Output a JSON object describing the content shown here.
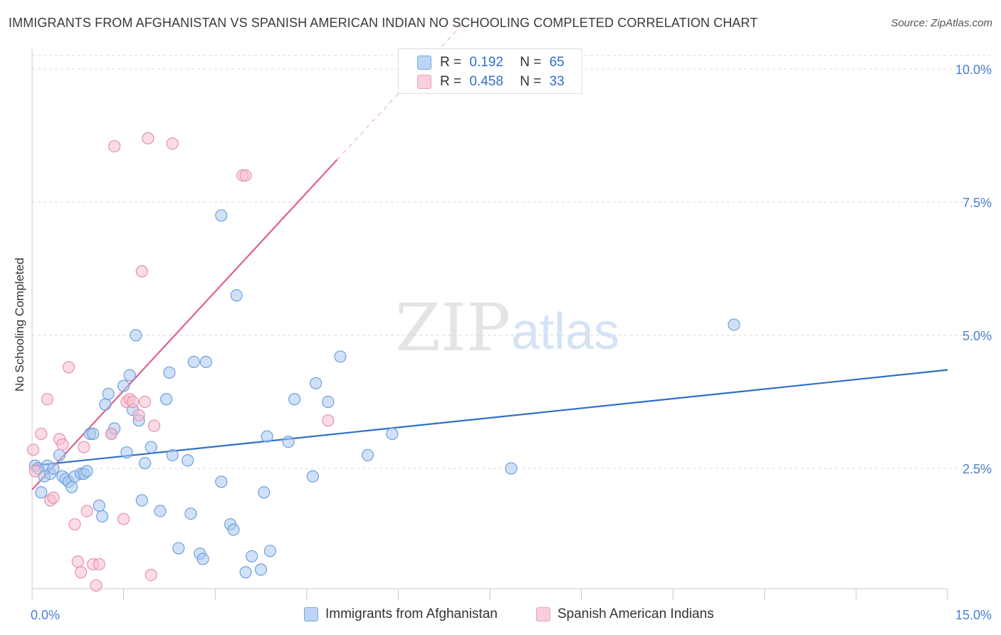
{
  "title": "IMMIGRANTS FROM AFGHANISTAN VS SPANISH AMERICAN INDIAN NO SCHOOLING COMPLETED CORRELATION CHART",
  "source": "Source: ZipAtlas.com",
  "watermark": {
    "zip": "ZIP",
    "atlas": "atlas"
  },
  "legend": {
    "r_label": "R =",
    "n_label": "N =",
    "rows": [
      {
        "r": "0.192",
        "n": "65"
      },
      {
        "r": "0.458",
        "n": "33"
      }
    ]
  },
  "colors": {
    "blue_fill": "#a9c8f0",
    "blue_stroke": "#6f9fdc",
    "blue_line": "#2f6fc9",
    "pink_fill": "#f7c0d0",
    "pink_stroke": "#e891ab",
    "pink_line": "#e0608a",
    "axis_text": "#4a7fcf",
    "grid": "#d9d9d9"
  },
  "chart_data": {
    "type": "scatter",
    "title": "IMMIGRANTS FROM AFGHANISTAN VS SPANISH AMERICAN INDIAN NO SCHOOLING COMPLETED CORRELATION CHART",
    "xlabel": "",
    "ylabel": "No Schooling Completed",
    "xlim": [
      0,
      15
    ],
    "ylim": [
      0,
      10.5
    ],
    "x_tick_labels": [
      "0.0%",
      "15.0%"
    ],
    "y_ticks": [
      2.5,
      5.0,
      7.5,
      10.0
    ],
    "y_tick_labels": [
      "2.5%",
      "5.0%",
      "7.5%",
      "10.0%"
    ],
    "grid": true,
    "legend_position": "top-center",
    "series": [
      {
        "name": "Immigrants from Afghanistan",
        "color": "#a9c8f0",
        "trend": {
          "x0": 0.0,
          "y0": 2.55,
          "x1": 15.0,
          "y1": 4.35,
          "solid_to": 15.0
        },
        "points": [
          [
            0.05,
            2.55
          ],
          [
            0.1,
            2.5
          ],
          [
            0.15,
            2.05
          ],
          [
            0.2,
            2.35
          ],
          [
            0.25,
            2.55
          ],
          [
            0.3,
            2.4
          ],
          [
            0.35,
            2.5
          ],
          [
            0.45,
            2.75
          ],
          [
            0.5,
            2.35
          ],
          [
            0.55,
            2.3
          ],
          [
            0.6,
            2.25
          ],
          [
            0.65,
            2.15
          ],
          [
            0.7,
            2.35
          ],
          [
            0.8,
            2.4
          ],
          [
            0.85,
            2.4
          ],
          [
            0.9,
            2.45
          ],
          [
            0.95,
            3.15
          ],
          [
            1.0,
            3.15
          ],
          [
            1.1,
            1.8
          ],
          [
            1.15,
            1.6
          ],
          [
            1.2,
            3.7
          ],
          [
            1.25,
            3.9
          ],
          [
            1.3,
            3.15
          ],
          [
            1.35,
            3.25
          ],
          [
            1.5,
            4.05
          ],
          [
            1.55,
            2.8
          ],
          [
            1.6,
            4.25
          ],
          [
            1.65,
            3.6
          ],
          [
            1.7,
            5.0
          ],
          [
            1.75,
            3.4
          ],
          [
            1.8,
            1.9
          ],
          [
            1.85,
            2.6
          ],
          [
            1.95,
            2.9
          ],
          [
            2.1,
            1.7
          ],
          [
            2.2,
            3.8
          ],
          [
            2.25,
            4.3
          ],
          [
            2.3,
            2.75
          ],
          [
            2.4,
            1.0
          ],
          [
            2.55,
            2.65
          ],
          [
            2.6,
            1.65
          ],
          [
            2.65,
            4.5
          ],
          [
            2.75,
            0.9
          ],
          [
            2.8,
            0.8
          ],
          [
            2.85,
            4.5
          ],
          [
            3.1,
            7.25
          ],
          [
            3.1,
            2.25
          ],
          [
            3.25,
            1.45
          ],
          [
            3.3,
            1.35
          ],
          [
            3.35,
            5.75
          ],
          [
            3.5,
            0.55
          ],
          [
            3.6,
            0.85
          ],
          [
            3.75,
            0.6
          ],
          [
            3.8,
            2.05
          ],
          [
            3.85,
            3.1
          ],
          [
            3.9,
            0.95
          ],
          [
            4.2,
            3.0
          ],
          [
            4.3,
            3.8
          ],
          [
            4.6,
            2.35
          ],
          [
            4.65,
            4.1
          ],
          [
            4.85,
            3.75
          ],
          [
            5.05,
            4.6
          ],
          [
            5.5,
            2.75
          ],
          [
            5.9,
            3.15
          ],
          [
            7.85,
            2.5
          ],
          [
            11.5,
            5.2
          ]
        ]
      },
      {
        "name": "Spanish American Indians",
        "color": "#f7c0d0",
        "trend": {
          "x0": 0.0,
          "y0": 2.1,
          "x1": 15.0,
          "y1": 20.7,
          "solid_to": 5.0
        },
        "points": [
          [
            0.02,
            2.85
          ],
          [
            0.05,
            2.45
          ],
          [
            0.15,
            3.15
          ],
          [
            0.25,
            3.8
          ],
          [
            0.3,
            1.9
          ],
          [
            0.35,
            1.95
          ],
          [
            0.45,
            3.05
          ],
          [
            0.5,
            2.95
          ],
          [
            0.6,
            4.4
          ],
          [
            0.7,
            1.45
          ],
          [
            0.75,
            0.75
          ],
          [
            0.8,
            0.55
          ],
          [
            0.85,
            2.9
          ],
          [
            0.9,
            1.7
          ],
          [
            1.0,
            0.7
          ],
          [
            1.05,
            0.3
          ],
          [
            1.1,
            0.7
          ],
          [
            1.3,
            3.15
          ],
          [
            1.35,
            8.55
          ],
          [
            1.5,
            1.55
          ],
          [
            1.55,
            3.75
          ],
          [
            1.6,
            3.8
          ],
          [
            1.65,
            3.75
          ],
          [
            1.75,
            3.5
          ],
          [
            1.8,
            6.2
          ],
          [
            1.85,
            3.75
          ],
          [
            1.9,
            8.7
          ],
          [
            1.95,
            0.5
          ],
          [
            2.0,
            3.3
          ],
          [
            2.3,
            8.6
          ],
          [
            3.45,
            8.0
          ],
          [
            3.5,
            8.0
          ],
          [
            4.85,
            3.4
          ]
        ]
      }
    ]
  }
}
